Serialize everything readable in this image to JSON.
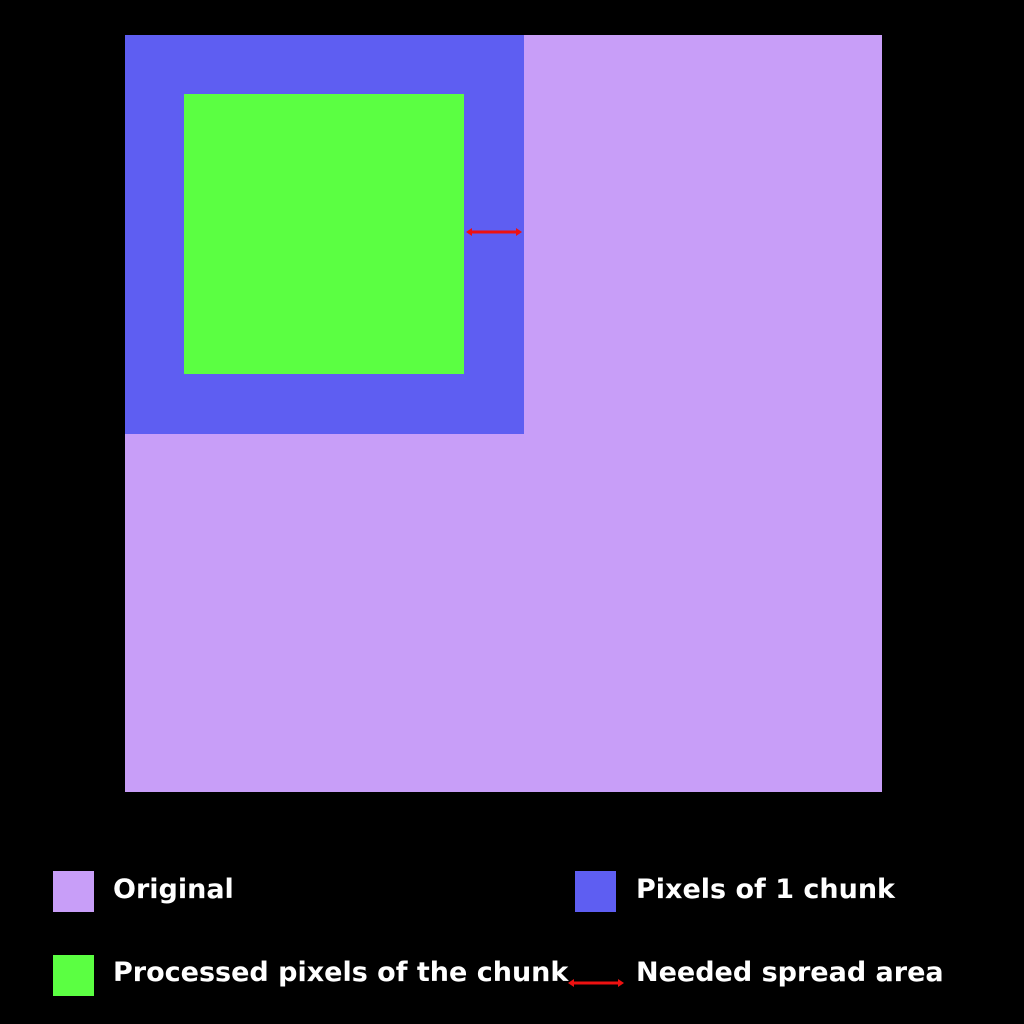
{
  "colors": {
    "background": "#000000",
    "original": "#c89ef8",
    "chunk": "#5e5ef2",
    "processed": "#5bff42",
    "arrow": "#ee1111"
  },
  "diagram": {
    "regions": [
      {
        "id": "original",
        "color_key": "original"
      },
      {
        "id": "chunk",
        "color_key": "chunk"
      },
      {
        "id": "processed",
        "color_key": "processed"
      }
    ],
    "arrow": {
      "style": "double-headed",
      "color_key": "arrow"
    }
  },
  "legend": {
    "original_label": "Original",
    "chunk_label": "Pixels of 1 chunk",
    "processed_label": "Processed pixels of the chunk",
    "spread_label": "Needed spread area"
  }
}
